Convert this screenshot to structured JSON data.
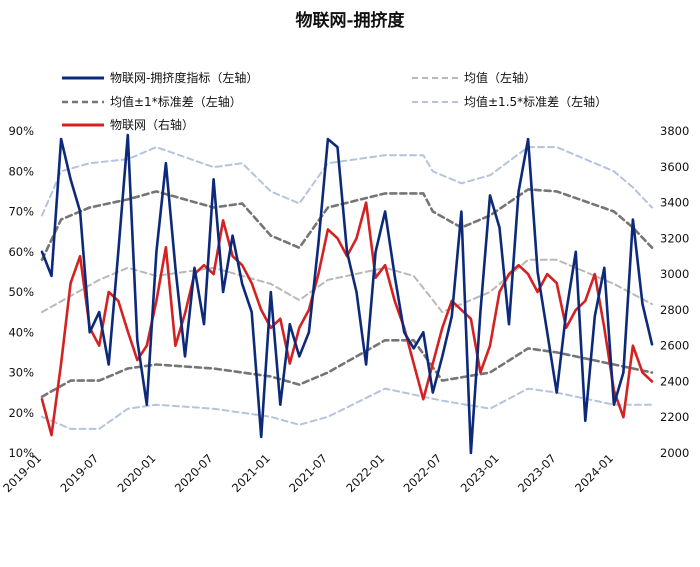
{
  "chart_data": {
    "type": "line",
    "title": "物联网-拥挤度",
    "x_tick_labels": [
      "2019-01",
      "2019-07",
      "2020-01",
      "2020-07",
      "2021-01",
      "2021-07",
      "2022-01",
      "2022-07",
      "2023-01",
      "2023-07",
      "2024-01"
    ],
    "x_range": [
      "2019-01",
      "2024-05"
    ],
    "y_left_tick_labels": [
      "10%",
      "20%",
      "30%",
      "40%",
      "50%",
      "60%",
      "70%",
      "80%",
      "90%"
    ],
    "y_left_range": [
      0.1,
      0.9
    ],
    "y_right_tick_labels": [
      "2000",
      "2200",
      "2400",
      "2600",
      "2800",
      "3000",
      "3200",
      "3400",
      "3600",
      "3800"
    ],
    "y_right_range": [
      2000,
      3800
    ],
    "legend_position": "top",
    "series": [
      {
        "name": "物联网-拥挤度指标（左轴）",
        "axis": "left",
        "color": "#0d2a7a",
        "style": "solid",
        "points": [
          [
            "2019-01",
            0.6
          ],
          [
            "2019-02",
            0.54
          ],
          [
            "2019-03",
            0.88
          ],
          [
            "2019-04",
            0.78
          ],
          [
            "2019-05",
            0.7
          ],
          [
            "2019-06",
            0.4
          ],
          [
            "2019-07",
            0.45
          ],
          [
            "2019-08",
            0.32
          ],
          [
            "2019-09",
            0.6
          ],
          [
            "2019-10",
            0.89
          ],
          [
            "2019-11",
            0.38
          ],
          [
            "2019-12",
            0.22
          ],
          [
            "2020-01",
            0.6
          ],
          [
            "2020-02",
            0.82
          ],
          [
            "2020-03",
            0.56
          ],
          [
            "2020-04",
            0.34
          ],
          [
            "2020-05",
            0.56
          ],
          [
            "2020-06",
            0.42
          ],
          [
            "2020-07",
            0.78
          ],
          [
            "2020-08",
            0.5
          ],
          [
            "2020-09",
            0.64
          ],
          [
            "2020-10",
            0.52
          ],
          [
            "2020-11",
            0.45
          ],
          [
            "2020-12",
            0.14
          ],
          [
            "2021-01",
            0.5
          ],
          [
            "2021-02",
            0.22
          ],
          [
            "2021-03",
            0.42
          ],
          [
            "2021-04",
            0.34
          ],
          [
            "2021-05",
            0.4
          ],
          [
            "2021-06",
            0.62
          ],
          [
            "2021-07",
            0.88
          ],
          [
            "2021-08",
            0.86
          ],
          [
            "2021-09",
            0.6
          ],
          [
            "2021-10",
            0.5
          ],
          [
            "2021-11",
            0.32
          ],
          [
            "2021-12",
            0.6
          ],
          [
            "2022-01",
            0.7
          ],
          [
            "2022-02",
            0.54
          ],
          [
            "2022-03",
            0.4
          ],
          [
            "2022-04",
            0.36
          ],
          [
            "2022-05",
            0.4
          ],
          [
            "2022-06",
            0.25
          ],
          [
            "2022-07",
            0.34
          ],
          [
            "2022-08",
            0.44
          ],
          [
            "2022-09",
            0.7
          ],
          [
            "2022-10",
            0.1
          ],
          [
            "2022-11",
            0.45
          ],
          [
            "2022-12",
            0.74
          ],
          [
            "2023-01",
            0.66
          ],
          [
            "2023-02",
            0.42
          ],
          [
            "2023-03",
            0.75
          ],
          [
            "2023-04",
            0.88
          ],
          [
            "2023-05",
            0.55
          ],
          [
            "2023-06",
            0.4
          ],
          [
            "2023-07",
            0.25
          ],
          [
            "2023-08",
            0.45
          ],
          [
            "2023-09",
            0.6
          ],
          [
            "2023-10",
            0.18
          ],
          [
            "2023-11",
            0.44
          ],
          [
            "2023-12",
            0.56
          ],
          [
            "2024-01",
            0.22
          ],
          [
            "2024-02",
            0.3
          ],
          [
            "2024-03",
            0.68
          ],
          [
            "2024-04",
            0.47
          ],
          [
            "2024-05",
            0.37
          ]
        ]
      },
      {
        "name": "均值（左轴）",
        "axis": "left",
        "color": "#b8b8b8",
        "style": "dashed",
        "points": [
          [
            "2019-01",
            0.45
          ],
          [
            "2019-07",
            0.53
          ],
          [
            "2019-10",
            0.56
          ],
          [
            "2020-01",
            0.54
          ],
          [
            "2020-07",
            0.56
          ],
          [
            "2021-01",
            0.52
          ],
          [
            "2021-04",
            0.48
          ],
          [
            "2021-07",
            0.53
          ],
          [
            "2022-01",
            0.56
          ],
          [
            "2022-04",
            0.54
          ],
          [
            "2022-07",
            0.45
          ],
          [
            "2022-12",
            0.5
          ],
          [
            "2023-04",
            0.58
          ],
          [
            "2023-07",
            0.58
          ],
          [
            "2024-01",
            0.52
          ],
          [
            "2024-05",
            0.47
          ]
        ]
      },
      {
        "name": "均值±1*标准差（左轴）",
        "axis": "left",
        "color": "#757575",
        "style": "dashed",
        "points": [
          [
            "2019-01",
            0.24
          ],
          [
            "2019-04",
            0.28
          ],
          [
            "2019-07",
            0.28
          ],
          [
            "2019-10",
            0.31
          ],
          [
            "2020-01",
            0.32
          ],
          [
            "2020-07",
            0.31
          ],
          [
            "2021-01",
            0.29
          ],
          [
            "2021-04",
            0.27
          ],
          [
            "2021-07",
            0.3
          ],
          [
            "2022-01",
            0.38
          ],
          [
            "2022-04",
            0.38
          ],
          [
            "2022-07",
            0.28
          ],
          [
            "2022-12",
            0.3
          ],
          [
            "2023-04",
            0.36
          ],
          [
            "2023-07",
            0.35
          ],
          [
            "2024-01",
            0.32
          ],
          [
            "2024-05",
            0.3
          ]
        ]
      },
      {
        "name": "",
        "axis": "left",
        "color": "#757575",
        "style": "dashed",
        "points": [
          [
            "2019-01",
            0.58
          ],
          [
            "2019-03",
            0.68
          ],
          [
            "2019-06",
            0.71
          ],
          [
            "2019-10",
            0.73
          ],
          [
            "2020-01",
            0.75
          ],
          [
            "2020-07",
            0.71
          ],
          [
            "2020-10",
            0.72
          ],
          [
            "2021-01",
            0.64
          ],
          [
            "2021-04",
            0.61
          ],
          [
            "2021-07",
            0.71
          ],
          [
            "2022-01",
            0.745
          ],
          [
            "2022-05",
            0.745
          ],
          [
            "2022-06",
            0.7
          ],
          [
            "2022-09",
            0.66
          ],
          [
            "2022-12",
            0.69
          ],
          [
            "2023-04",
            0.755
          ],
          [
            "2023-07",
            0.75
          ],
          [
            "2024-01",
            0.7
          ],
          [
            "2024-03",
            0.66
          ],
          [
            "2024-05",
            0.61
          ]
        ]
      },
      {
        "name": "均值±1.5*标准差（左轴）",
        "axis": "left",
        "color": "#b4c4de",
        "style": "dashed",
        "points": [
          [
            "2019-01",
            0.19
          ],
          [
            "2019-04",
            0.16
          ],
          [
            "2019-07",
            0.16
          ],
          [
            "2019-10",
            0.21
          ],
          [
            "2020-01",
            0.22
          ],
          [
            "2020-07",
            0.21
          ],
          [
            "2021-01",
            0.19
          ],
          [
            "2021-04",
            0.17
          ],
          [
            "2021-07",
            0.19
          ],
          [
            "2022-01",
            0.26
          ],
          [
            "2022-07",
            0.23
          ],
          [
            "2022-12",
            0.21
          ],
          [
            "2023-04",
            0.26
          ],
          [
            "2023-07",
            0.25
          ],
          [
            "2024-01",
            0.22
          ],
          [
            "2024-05",
            0.22
          ]
        ]
      },
      {
        "name": "",
        "axis": "left",
        "color": "#b4c4de",
        "style": "dashed",
        "points": [
          [
            "2019-01",
            0.69
          ],
          [
            "2019-03",
            0.8
          ],
          [
            "2019-06",
            0.82
          ],
          [
            "2019-10",
            0.83
          ],
          [
            "2020-01",
            0.86
          ],
          [
            "2020-07",
            0.81
          ],
          [
            "2020-10",
            0.82
          ],
          [
            "2021-01",
            0.75
          ],
          [
            "2021-04",
            0.72
          ],
          [
            "2021-07",
            0.82
          ],
          [
            "2022-01",
            0.84
          ],
          [
            "2022-05",
            0.84
          ],
          [
            "2022-06",
            0.8
          ],
          [
            "2022-09",
            0.77
          ],
          [
            "2022-12",
            0.79
          ],
          [
            "2023-04",
            0.86
          ],
          [
            "2023-07",
            0.86
          ],
          [
            "2024-01",
            0.8
          ],
          [
            "2024-03",
            0.76
          ],
          [
            "2024-05",
            0.71
          ]
        ]
      },
      {
        "name": "物联网（右轴）",
        "axis": "right",
        "color": "#d42121",
        "style": "solid",
        "points": [
          [
            "2019-01",
            2300
          ],
          [
            "2019-02",
            2100
          ],
          [
            "2019-03",
            2500
          ],
          [
            "2019-04",
            2950
          ],
          [
            "2019-05",
            3100
          ],
          [
            "2019-06",
            2700
          ],
          [
            "2019-07",
            2600
          ],
          [
            "2019-08",
            2900
          ],
          [
            "2019-09",
            2850
          ],
          [
            "2019-10",
            2680
          ],
          [
            "2019-11",
            2520
          ],
          [
            "2019-12",
            2600
          ],
          [
            "2020-01",
            2850
          ],
          [
            "2020-02",
            3150
          ],
          [
            "2020-03",
            2600
          ],
          [
            "2020-04",
            2780
          ],
          [
            "2020-05",
            3000
          ],
          [
            "2020-06",
            3050
          ],
          [
            "2020-07",
            3000
          ],
          [
            "2020-08",
            3300
          ],
          [
            "2020-09",
            3100
          ],
          [
            "2020-10",
            3050
          ],
          [
            "2020-11",
            2950
          ],
          [
            "2020-12",
            2800
          ],
          [
            "2021-01",
            2700
          ],
          [
            "2021-02",
            2750
          ],
          [
            "2021-03",
            2500
          ],
          [
            "2021-04",
            2700
          ],
          [
            "2021-05",
            2800
          ],
          [
            "2021-06",
            3000
          ],
          [
            "2021-07",
            3250
          ],
          [
            "2021-08",
            3200
          ],
          [
            "2021-09",
            3100
          ],
          [
            "2021-10",
            3200
          ],
          [
            "2021-11",
            3400
          ],
          [
            "2021-12",
            2980
          ],
          [
            "2022-01",
            3050
          ],
          [
            "2022-02",
            2850
          ],
          [
            "2022-03",
            2700
          ],
          [
            "2022-04",
            2500
          ],
          [
            "2022-05",
            2300
          ],
          [
            "2022-06",
            2500
          ],
          [
            "2022-07",
            2700
          ],
          [
            "2022-08",
            2850
          ],
          [
            "2022-09",
            2800
          ],
          [
            "2022-10",
            2750
          ],
          [
            "2022-11",
            2450
          ],
          [
            "2022-12",
            2600
          ],
          [
            "2023-01",
            2900
          ],
          [
            "2023-02",
            3000
          ],
          [
            "2023-03",
            3050
          ],
          [
            "2023-04",
            3000
          ],
          [
            "2023-05",
            2900
          ],
          [
            "2023-06",
            3000
          ],
          [
            "2023-07",
            2950
          ],
          [
            "2023-08",
            2700
          ],
          [
            "2023-09",
            2800
          ],
          [
            "2023-10",
            2850
          ],
          [
            "2023-11",
            3000
          ],
          [
            "2023-12",
            2700
          ],
          [
            "2024-01",
            2350
          ],
          [
            "2024-02",
            2200
          ],
          [
            "2024-03",
            2600
          ],
          [
            "2024-04",
            2450
          ],
          [
            "2024-05",
            2400
          ]
        ]
      }
    ]
  }
}
